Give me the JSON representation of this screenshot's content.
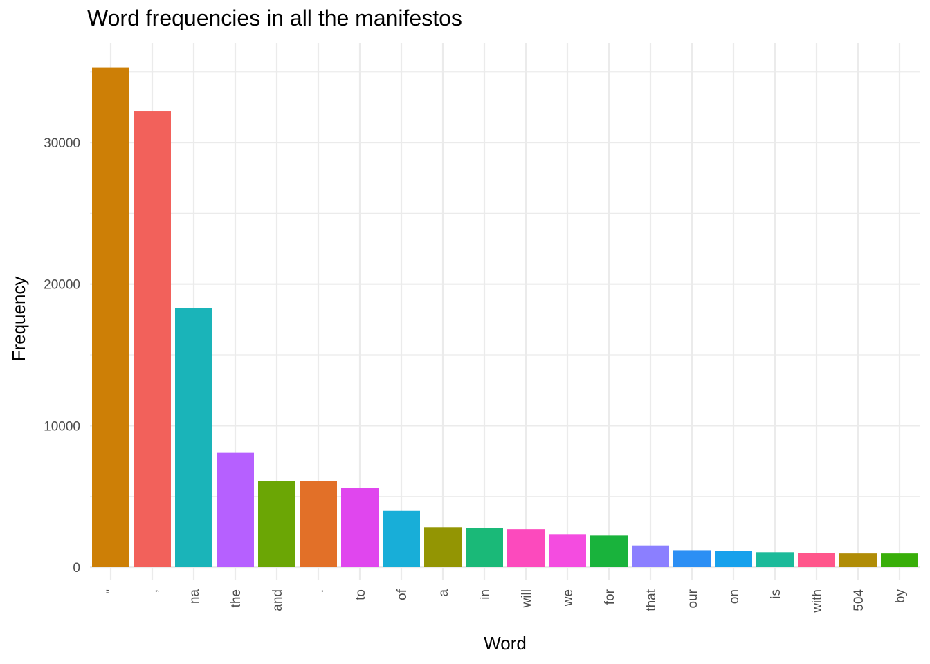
{
  "chart_data": {
    "type": "bar",
    "title": "Word frequencies in all the manifestos",
    "xlabel": "Word",
    "ylabel": "Frequency",
    "ylim": [
      0,
      36000
    ],
    "yticks": [
      0,
      10000,
      20000,
      30000
    ],
    "grid": true,
    "legend": "none",
    "categories": [
      "\"",
      ",",
      "na",
      "the",
      "and",
      ".",
      "to",
      "of",
      "a",
      "in",
      "will",
      "we",
      "for",
      "that",
      "our",
      "on",
      "is",
      "with",
      "504",
      "by"
    ],
    "values": [
      35300,
      32200,
      18300,
      8080,
      6100,
      6100,
      5580,
      3970,
      2820,
      2760,
      2680,
      2330,
      2230,
      1530,
      1200,
      1140,
      1060,
      1010,
      970,
      970
    ],
    "colors": [
      "#CD7F06",
      "#F2615B",
      "#1AB4B9",
      "#B660FF",
      "#6BA605",
      "#E27028",
      "#E046EE",
      "#18AED8",
      "#939503",
      "#1AB978",
      "#FC4ABD",
      "#F44CE0",
      "#19B33C",
      "#8B7FFF",
      "#2C8FF4",
      "#17A1EC",
      "#1CBA9A",
      "#FF568B",
      "#B08C06",
      "#38AE09"
    ]
  }
}
